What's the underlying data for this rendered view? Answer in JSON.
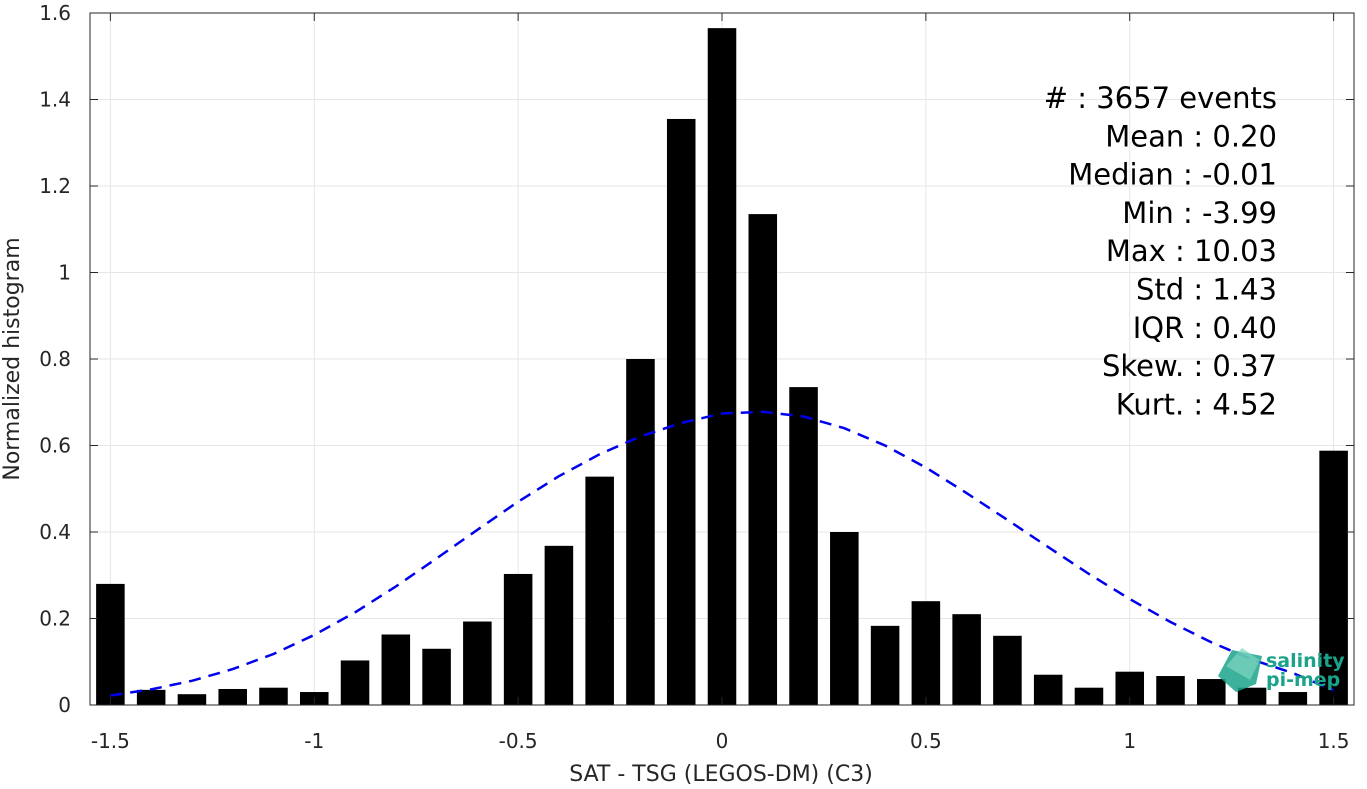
{
  "chart_data": {
    "type": "bar",
    "title": "",
    "xlabel": "SAT - TSG (LEGOS-DM) (C3)",
    "ylabel": "Normalized histogram",
    "xlim": [
      -1.55,
      1.55
    ],
    "ylim": [
      0,
      1.6
    ],
    "grid": true,
    "bin_width": 0.1,
    "x_ticks": [
      -1.5,
      -1,
      -0.5,
      0,
      0.5,
      1,
      1.5
    ],
    "x_tick_labels": [
      "-1.5",
      "-1",
      "-0.5",
      "0",
      "0.5",
      "1",
      "1.5"
    ],
    "y_ticks": [
      0,
      0.2,
      0.4,
      0.6,
      0.8,
      1,
      1.2,
      1.4,
      1.6
    ],
    "y_tick_labels": [
      "0",
      "0.2",
      "0.4",
      "0.6",
      "0.8",
      "1",
      "1.2",
      "1.4",
      "1.6"
    ],
    "x": [
      -1.5,
      -1.4,
      -1.3,
      -1.2,
      -1.1,
      -1.0,
      -0.9,
      -0.8,
      -0.7,
      -0.6,
      -0.5,
      -0.4,
      -0.3,
      -0.2,
      -0.1,
      0.0,
      0.1,
      0.2,
      0.3,
      0.4,
      0.5,
      0.6,
      0.7,
      0.8,
      0.9,
      1.0,
      1.1,
      1.2,
      1.3,
      1.4,
      1.5
    ],
    "values": [
      0.28,
      0.035,
      0.025,
      0.037,
      0.04,
      0.03,
      0.103,
      0.163,
      0.13,
      0.193,
      0.303,
      0.368,
      0.528,
      0.8,
      1.355,
      1.565,
      1.135,
      0.735,
      0.4,
      0.183,
      0.24,
      0.21,
      0.16,
      0.07,
      0.04,
      0.077,
      0.067,
      0.06,
      0.04,
      0.03,
      0.588
    ],
    "bar_color": "#000000",
    "fit_curve": {
      "style": "dashed",
      "color": "#0000ee",
      "x": [
        -1.5,
        -1.4,
        -1.3,
        -1.2,
        -1.1,
        -1.0,
        -0.9,
        -0.8,
        -0.7,
        -0.6,
        -0.5,
        -0.4,
        -0.3,
        -0.2,
        -0.1,
        0.0,
        0.1,
        0.2,
        0.3,
        0.4,
        0.5,
        0.6,
        0.7,
        0.8,
        0.9,
        1.0,
        1.1,
        1.2,
        1.3,
        1.4,
        1.5
      ],
      "y": [
        0.022,
        0.036,
        0.056,
        0.083,
        0.118,
        0.162,
        0.214,
        0.274,
        0.339,
        0.405,
        0.47,
        0.529,
        0.58,
        0.621,
        0.652,
        0.674,
        0.678,
        0.667,
        0.64,
        0.6,
        0.549,
        0.49,
        0.428,
        0.365,
        0.303,
        0.245,
        0.192,
        0.145,
        0.105,
        0.074,
        0.034
      ]
    },
    "stats": [
      "#  : 3657 events",
      "Mean : 0.20",
      "Median : -0.01",
      "Min : -3.99",
      "Max : 10.03",
      "Std : 1.43",
      "IQR : 0.40",
      "Skew. : 0.37",
      "Kurt. : 4.52"
    ]
  },
  "logo": {
    "line1": "salinity",
    "line2": "pi-mep",
    "color": "#1aa38a"
  }
}
